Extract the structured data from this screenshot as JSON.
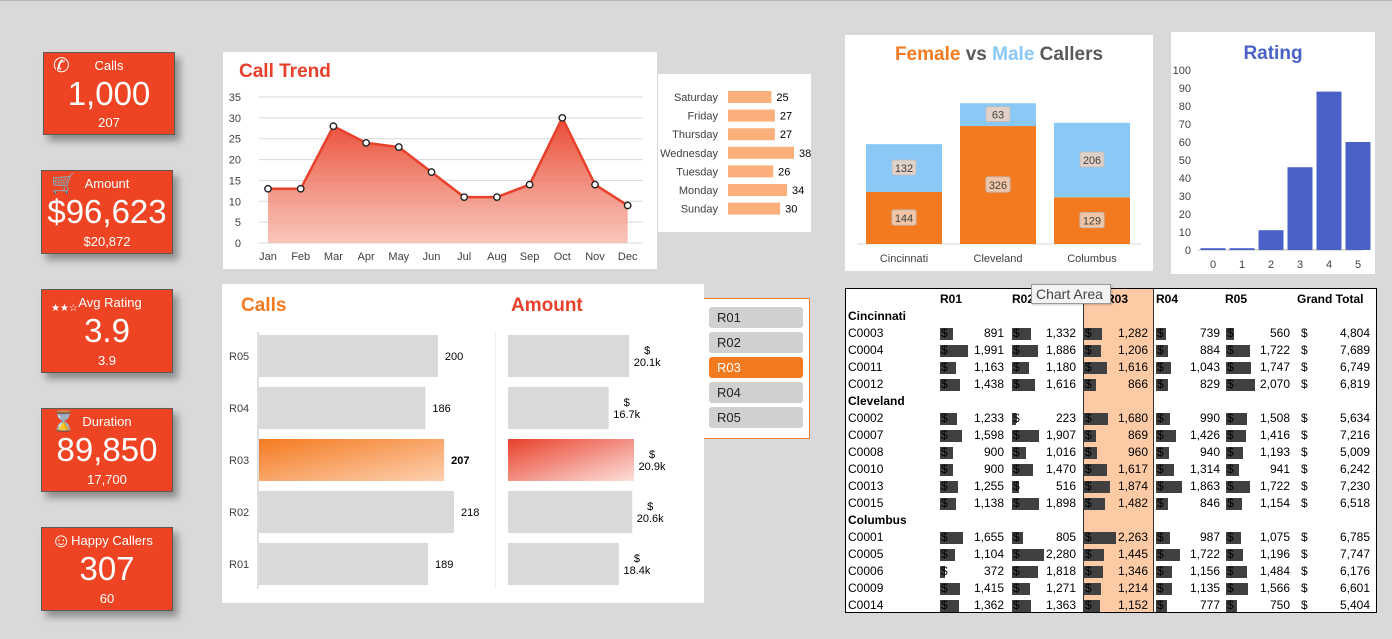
{
  "kpis": [
    {
      "label": "Calls",
      "value": "1,000",
      "sub": "207",
      "icon": "phone-icon"
    },
    {
      "label": "Amount",
      "value": "$96,623",
      "sub": "$20,872",
      "icon": "cart-icon"
    },
    {
      "label": "Avg Rating",
      "value": "3.9",
      "sub": "3.9",
      "icon": "stars-icon"
    },
    {
      "label": "Duration",
      "value": "89,850",
      "sub": "17,700",
      "icon": "hourglass-icon"
    },
    {
      "label": "Happy Callers",
      "value": "307",
      "sub": "60",
      "icon": "smiley-icon"
    }
  ],
  "colors": {
    "accent": "#ee4423",
    "orange": "#f47a20",
    "blue": "#8ac8f5",
    "rating_blue": "#4a62c8",
    "day_bar": "#fbb07b"
  },
  "call_trend": {
    "title": "Call Trend"
  },
  "gender_chart": {
    "title_female": "Female",
    "title_vs": "vs",
    "title_male": "Male",
    "title_rest": "Callers"
  },
  "rating_chart": {
    "title": "Rating"
  },
  "calls_panel": {
    "title": "Calls"
  },
  "amount_panel": {
    "title": "Amount"
  },
  "slicer": {
    "items": [
      "R01",
      "R02",
      "R03",
      "R04",
      "R05"
    ],
    "selected": "R03"
  },
  "tooltip": "Chart Area",
  "pivot": {
    "headers": [
      "R01",
      "R02",
      "R03",
      "R04",
      "R05",
      "Grand Total"
    ],
    "currency": "$",
    "rows": [
      {
        "type": "city",
        "name": "Cincinnati"
      },
      {
        "type": "row",
        "name": "C0003",
        "values": [
          "891",
          "1,332",
          "1,282",
          "739",
          "560"
        ],
        "total": "4,804"
      },
      {
        "type": "row",
        "name": "C0004",
        "values": [
          "1,991",
          "1,886",
          "1,206",
          "884",
          "1,722"
        ],
        "total": "7,689"
      },
      {
        "type": "row",
        "name": "C0011",
        "values": [
          "1,163",
          "1,180",
          "1,616",
          "1,043",
          "1,747"
        ],
        "total": "6,749"
      },
      {
        "type": "row",
        "name": "C0012",
        "values": [
          "1,438",
          "1,616",
          "866",
          "829",
          "2,070"
        ],
        "total": "6,819"
      },
      {
        "type": "city",
        "name": "Cleveland"
      },
      {
        "type": "row",
        "name": "C0002",
        "values": [
          "1,233",
          "223",
          "1,680",
          "990",
          "1,508"
        ],
        "total": "5,634"
      },
      {
        "type": "row",
        "name": "C0007",
        "values": [
          "1,598",
          "1,907",
          "869",
          "1,426",
          "1,416"
        ],
        "total": "7,216"
      },
      {
        "type": "row",
        "name": "C0008",
        "values": [
          "900",
          "1,016",
          "960",
          "940",
          "1,193"
        ],
        "total": "5,009"
      },
      {
        "type": "row",
        "name": "C0010",
        "values": [
          "900",
          "1,470",
          "1,617",
          "1,314",
          "941"
        ],
        "total": "6,242"
      },
      {
        "type": "row",
        "name": "C0013",
        "values": [
          "1,255",
          "516",
          "1,874",
          "1,863",
          "1,722"
        ],
        "total": "7,230"
      },
      {
        "type": "row",
        "name": "C0015",
        "values": [
          "1,138",
          "1,898",
          "1,482",
          "846",
          "1,154"
        ],
        "total": "6,518"
      },
      {
        "type": "city",
        "name": "Columbus"
      },
      {
        "type": "row",
        "name": "C0001",
        "values": [
          "1,655",
          "805",
          "2,263",
          "987",
          "1,075"
        ],
        "total": "6,785"
      },
      {
        "type": "row",
        "name": "C0005",
        "values": [
          "1,104",
          "2,280",
          "1,445",
          "1,722",
          "1,196"
        ],
        "total": "7,747"
      },
      {
        "type": "row",
        "name": "C0006",
        "values": [
          "372",
          "1,818",
          "1,346",
          "1,156",
          "1,484"
        ],
        "total": "6,176"
      },
      {
        "type": "row",
        "name": "C0009",
        "values": [
          "1,415",
          "1,271",
          "1,214",
          "1,135",
          "1,566"
        ],
        "total": "6,601"
      },
      {
        "type": "row",
        "name": "C0014",
        "values": [
          "1,362",
          "1,363",
          "1,152",
          "777",
          "750"
        ],
        "total": "5,404"
      }
    ]
  },
  "chart_data": [
    {
      "type": "area",
      "title": "Call Trend",
      "categories": [
        "Jan",
        "Feb",
        "Mar",
        "Apr",
        "May",
        "Jun",
        "Jul",
        "Aug",
        "Sep",
        "Oct",
        "Nov",
        "Dec"
      ],
      "values": [
        13,
        13,
        28,
        24,
        23,
        17,
        11,
        11,
        14,
        30,
        14,
        9
      ],
      "ylim": [
        0,
        35
      ],
      "yticks": [
        "0",
        "5",
        "10",
        "15",
        "20",
        "25",
        "30",
        "35"
      ],
      "grid": true
    },
    {
      "type": "bar",
      "orientation": "horizontal",
      "categories": [
        "Saturday",
        "Friday",
        "Thursday",
        "Wednesday",
        "Tuesday",
        "Monday",
        "Sunday"
      ],
      "values": [
        25,
        27,
        27,
        38,
        26,
        34,
        30
      ]
    },
    {
      "type": "bar",
      "stacked": true,
      "title": "Female vs Male Callers",
      "categories": [
        "Cincinnati",
        "Cleveland",
        "Columbus"
      ],
      "series": [
        {
          "values": [
            144,
            326,
            129
          ]
        },
        {
          "values": [
            132,
            63,
            206
          ]
        }
      ]
    },
    {
      "type": "bar",
      "title": "Rating",
      "categories": [
        "0",
        "1",
        "2",
        "3",
        "4",
        "5"
      ],
      "values": [
        1,
        1,
        11,
        46,
        88,
        60
      ],
      "ylim": [
        0,
        100
      ],
      "yticks": [
        "0",
        "10",
        "20",
        "30",
        "40",
        "50",
        "60",
        "70",
        "80",
        "90",
        "100"
      ]
    },
    {
      "type": "bar",
      "orientation": "horizontal",
      "title": "Calls",
      "categories": [
        "R05",
        "R04",
        "R03",
        "R02",
        "R01"
      ],
      "values": [
        200,
        186,
        207,
        218,
        189
      ],
      "labels": [
        "200",
        "186",
        "207",
        "218",
        "189"
      ],
      "highlight": "R03"
    },
    {
      "type": "bar",
      "orientation": "horizontal",
      "title": "Amount",
      "categories": [
        "R05",
        "R04",
        "R03",
        "R02",
        "R01"
      ],
      "values": [
        20.1,
        16.7,
        20.9,
        20.6,
        18.4
      ],
      "labels_top": [
        "$",
        "$",
        "$",
        "$",
        "$"
      ],
      "labels": [
        "20.1k",
        "16.7k",
        "20.9k",
        "20.6k",
        "18.4k"
      ],
      "highlight": "R03"
    }
  ]
}
